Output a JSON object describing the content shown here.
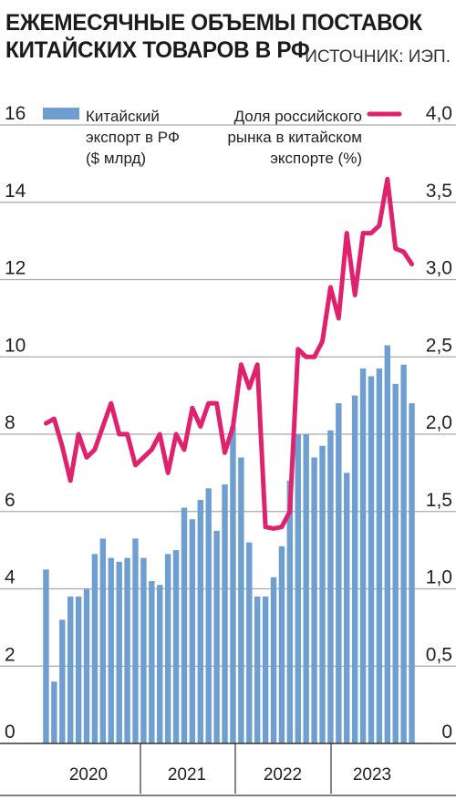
{
  "header": {
    "title_line1": "ЕЖЕМЕСЯЧНЫЕ ОБЪЕМЫ ПОСТАВОК",
    "title_line2": "КИТАЙСКИХ ТОВАРОВ В РФ",
    "source": "ИСТОЧНИК: ИЭП."
  },
  "colors": {
    "bar": "#6f9fd0",
    "line": "#e0226e",
    "grid": "#aaaaaa",
    "text": "#222222"
  },
  "chart_data": {
    "type": "bar+line",
    "title": "ЕЖЕМЕСЯЧНЫЕ ОБЪЕМЫ ПОСТАВОК КИТАЙСКИХ ТОВАРОВ В РФ",
    "left_axis": {
      "ylim": [
        0,
        16
      ],
      "ticks": [
        "0",
        "2",
        "4",
        "6",
        "8",
        "10",
        "12",
        "14",
        "16"
      ]
    },
    "right_axis": {
      "ylim": [
        0,
        4
      ],
      "ticks": [
        "0",
        "0,5",
        "1,0",
        "1,5",
        "2,0",
        "2,5",
        "3,0",
        "3,5",
        "4,0"
      ]
    },
    "years": [
      "2020",
      "2021",
      "2022",
      "2023"
    ],
    "grid": "horizontal",
    "series": [
      {
        "name_lines": [
          "Китайский",
          "экспорт в РФ",
          "($ млрд)"
        ],
        "type": "bar",
        "axis": "left",
        "values": [
          4.5,
          1.6,
          3.2,
          3.8,
          3.8,
          4.0,
          4.9,
          5.3,
          4.8,
          4.7,
          4.8,
          5.3,
          4.8,
          4.2,
          4.1,
          4.9,
          5.0,
          6.1,
          5.8,
          6.3,
          6.6,
          5.5,
          6.7,
          8.2,
          7.4,
          5.2,
          3.8,
          3.8,
          4.3,
          5.1,
          6.8,
          8.0,
          8.0,
          7.4,
          7.7,
          8.1,
          8.8,
          7.0,
          9.0,
          9.7,
          9.5,
          9.7,
          10.3,
          9.3,
          9.8,
          8.8
        ],
        "months_note": "Jan 2020 – Oct 2023"
      },
      {
        "name_lines": [
          "Доля российского",
          "рынка в китайском",
          "экспорте (%)"
        ],
        "type": "line",
        "axis": "right",
        "values": [
          2.07,
          2.1,
          1.92,
          1.7,
          2.0,
          1.85,
          1.9,
          2.05,
          2.2,
          2.0,
          2.0,
          1.8,
          1.85,
          1.9,
          2.0,
          1.75,
          2.0,
          1.9,
          2.17,
          2.05,
          2.2,
          2.2,
          1.88,
          2.05,
          2.45,
          2.3,
          2.45,
          1.4,
          1.39,
          1.4,
          1.5,
          2.55,
          2.5,
          2.5,
          2.6,
          2.95,
          2.75,
          3.3,
          2.9,
          3.3,
          3.3,
          3.35,
          3.65,
          3.2,
          3.18,
          3.1
        ]
      }
    ]
  }
}
